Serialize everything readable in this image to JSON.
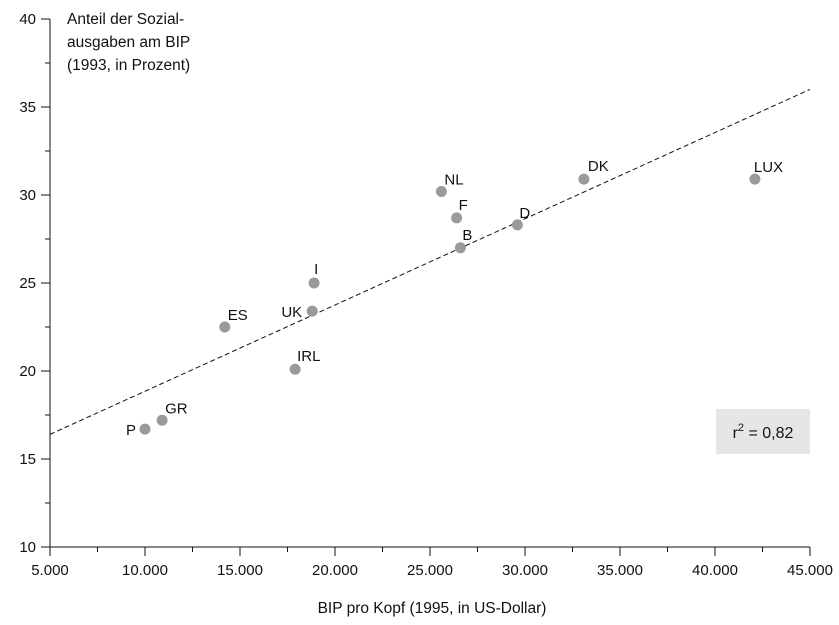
{
  "chart_data": {
    "type": "scatter",
    "title": "",
    "ylabel_lines": [
      "Anteil der Sozial-",
      "ausgaben am BIP",
      "(1993, in Prozent)"
    ],
    "xlabel": "BIP pro Kopf (1995, in US-Dollar)",
    "xlim": [
      5000,
      45000
    ],
    "ylim": [
      10,
      40
    ],
    "x_ticks": [
      5000,
      10000,
      15000,
      20000,
      25000,
      30000,
      35000,
      40000,
      45000
    ],
    "x_tick_labels": [
      "5.000",
      "10.000",
      "15.000",
      "20.000",
      "25.000",
      "30.000",
      "35.000",
      "40.000",
      "45.000"
    ],
    "y_ticks": [
      10,
      15,
      20,
      25,
      30,
      35,
      40
    ],
    "y_tick_labels": [
      "10",
      "15",
      "20",
      "25",
      "30",
      "35",
      "40"
    ],
    "grid": false,
    "points": [
      {
        "label": "P",
        "x": 10000,
        "y": 16.7
      },
      {
        "label": "GR",
        "x": 10900,
        "y": 17.2
      },
      {
        "label": "ES",
        "x": 14200,
        "y": 22.5
      },
      {
        "label": "IRL",
        "x": 17900,
        "y": 20.1
      },
      {
        "label": "UK",
        "x": 18800,
        "y": 23.4
      },
      {
        "label": "I",
        "x": 18900,
        "y": 25.0
      },
      {
        "label": "NL",
        "x": 25600,
        "y": 30.2
      },
      {
        "label": "F",
        "x": 26400,
        "y": 28.7
      },
      {
        "label": "B",
        "x": 26600,
        "y": 27.0
      },
      {
        "label": "D",
        "x": 29600,
        "y": 28.3
      },
      {
        "label": "DK",
        "x": 33100,
        "y": 30.9
      },
      {
        "label": "LUX",
        "x": 42100,
        "y": 30.9
      }
    ],
    "trendline": {
      "style": "dashed",
      "x": [
        5000,
        45000
      ],
      "y": [
        16.4,
        36.0
      ]
    },
    "annotation": {
      "prefix": "r",
      "superscript": "2",
      "text": " = 0,82"
    },
    "colors": {
      "point": "#9a9a9a",
      "annotation_bg": "#e6e6e6",
      "axis": "#111111"
    }
  }
}
